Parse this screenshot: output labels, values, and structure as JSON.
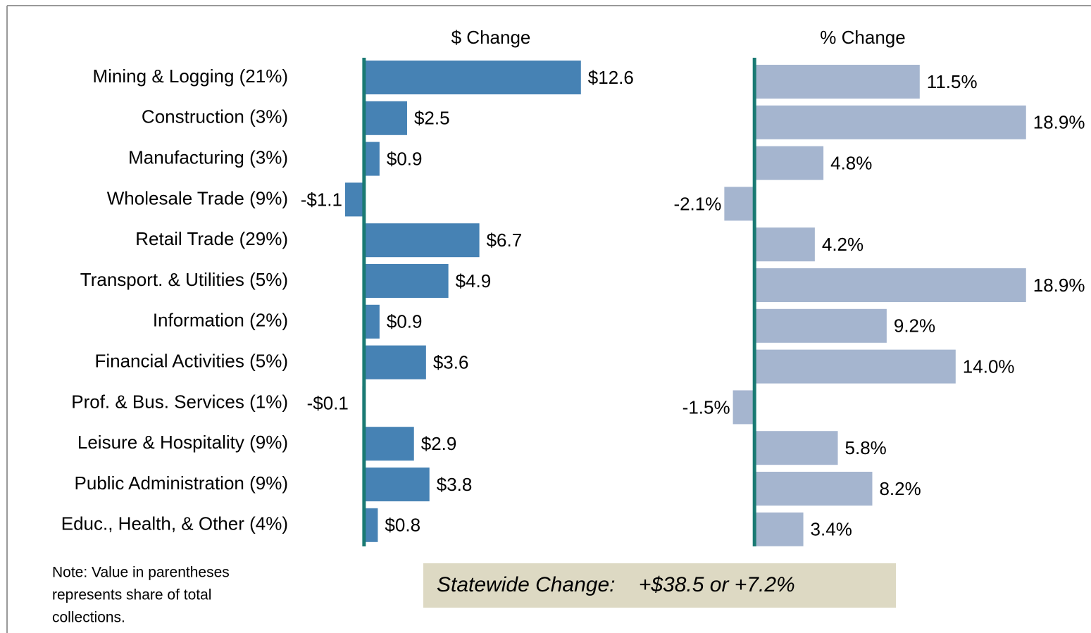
{
  "chart_data": [
    {
      "type": "barh",
      "title": "$ Change",
      "categories": [
        "Mining & Logging (21%)",
        "Construction (3%)",
        "Manufacturing (3%)",
        "Wholesale Trade (9%)",
        "Retail Trade (29%)",
        "Transport. & Utilities (5%)",
        "Information (2%)",
        "Financial Activities (5%)",
        "Prof. & Bus. Services (1%)",
        "Leisure & Hospitality (9%)",
        "Public Administration (9%)",
        "Educ., Health, & Other (4%)"
      ],
      "values": [
        12.6,
        2.5,
        0.9,
        -1.1,
        6.7,
        4.9,
        0.9,
        3.6,
        -0.1,
        2.9,
        3.8,
        0.8
      ],
      "value_labels": [
        "$12.6",
        "$2.5",
        "$0.9",
        "-$1.1",
        "$6.7",
        "$4.9",
        "$0.9",
        "$3.6",
        "-$0.1",
        "$2.9",
        "$3.8",
        "$0.8"
      ],
      "color": "#4682b4",
      "xlim": [
        -2,
        14
      ]
    },
    {
      "type": "barh",
      "title": "% Change",
      "values": [
        11.5,
        18.9,
        4.8,
        -2.1,
        4.2,
        18.9,
        9.2,
        14.0,
        -1.5,
        5.8,
        8.2,
        3.4
      ],
      "value_labels": [
        "11.5%",
        "18.9%",
        "4.8%",
        "-2.1%",
        "4.2%",
        "18.9%",
        "9.2%",
        "14.0%",
        "-1.5%",
        "5.8%",
        "8.2%",
        "3.4%"
      ],
      "color": "#a5b5cf",
      "xlim": [
        -3,
        22
      ]
    }
  ],
  "note": [
    "Note: Value in parentheses",
    "represents share of total",
    "collections."
  ],
  "summary": "Statewide Change:    +$38.5 or +7.2%"
}
